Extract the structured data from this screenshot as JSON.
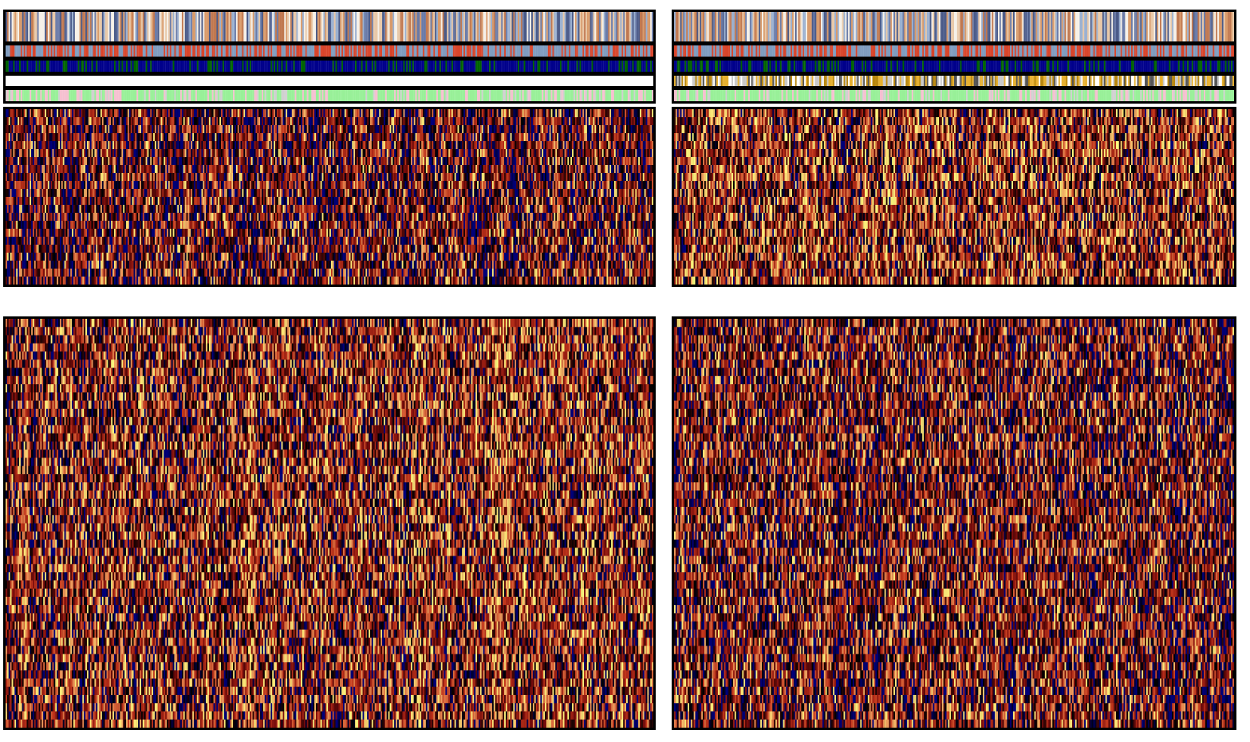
{
  "chart_data": {
    "type": "heatmap",
    "title": "",
    "xlabel": "",
    "ylabel": "",
    "legend": "none",
    "color_scale": {
      "name": "navy-black-red-yellow",
      "stops": [
        "#00007a",
        "#000000",
        "#7a0c0c",
        "#c4361c",
        "#f0a060",
        "#ffff80"
      ],
      "range": [
        0,
        1
      ]
    },
    "annotation_tracks": [
      {
        "track": 1,
        "palette": [
          "#6a7ba8",
          "#d89a6a",
          "#e8c8a8",
          "#4a5a88",
          "#f5f0e8",
          "#9ab0d0",
          "#c07850"
        ]
      },
      {
        "track": 2,
        "palette": [
          "#7f9cbf",
          "#d9452b"
        ]
      },
      {
        "track": 3,
        "palette": [
          "#00008b",
          "#006400"
        ]
      },
      {
        "track": 4,
        "palette": [
          "#ffffff",
          "#c8c8c8",
          "#e6b030",
          "#555555",
          "#b8860b"
        ]
      },
      {
        "track": 5,
        "palette": [
          "#98f098",
          "#f5c0d0",
          "#d0d0d0"
        ]
      }
    ],
    "panels": [
      {
        "group": "left",
        "block": "top",
        "columns": 430,
        "rows": 22,
        "mean_value": 0.36
      },
      {
        "group": "right",
        "block": "top",
        "columns": 370,
        "rows": 22,
        "mean_value": 0.48
      },
      {
        "group": "left",
        "block": "bottom",
        "columns": 430,
        "rows": 50,
        "mean_value": 0.45
      },
      {
        "group": "right",
        "block": "bottom",
        "columns": 370,
        "rows": 50,
        "mean_value": 0.38
      }
    ],
    "track4_left_empty": true
  }
}
